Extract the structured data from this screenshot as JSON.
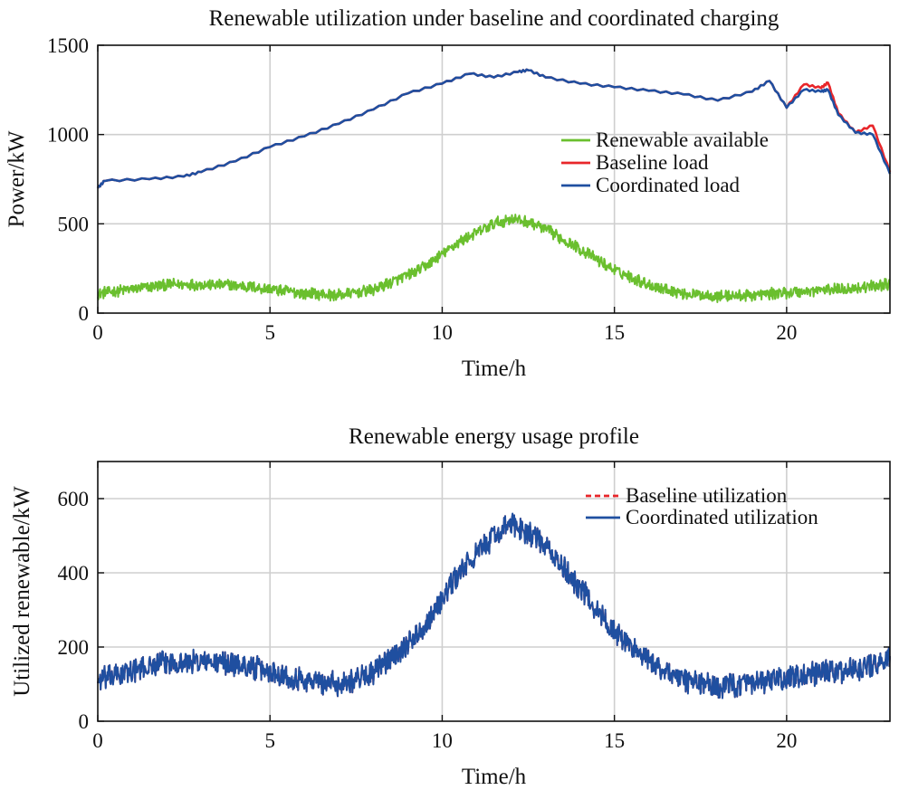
{
  "chart_data": [
    {
      "type": "line",
      "title": "Renewable utilization under baseline and coordinated charging",
      "xlabel": "Time/h",
      "ylabel": "Power/kW",
      "xlim": [
        0,
        23
      ],
      "ylim": [
        0,
        1500
      ],
      "xticks": [
        0,
        5,
        10,
        15,
        20
      ],
      "yticks": [
        0,
        500,
        1000,
        1500
      ],
      "grid": true,
      "legend_position": "right",
      "colors": {
        "renewable": "#6abf2e",
        "baseline": "#e8262a",
        "coordinated": "#1f4fa0"
      },
      "legend": [
        "Renewable available",
        "Baseline load",
        "Coordinated load"
      ],
      "series": [
        {
          "name": "Renewable available",
          "style": "solid-noisy",
          "noise_amplitude": 35,
          "x": [
            0,
            1,
            2,
            3,
            4,
            5,
            6,
            7,
            8,
            9,
            9.5,
            10,
            10.5,
            11,
            11.5,
            12,
            12.5,
            13,
            14,
            15,
            16,
            17,
            18,
            19,
            20,
            21,
            22,
            23
          ],
          "values": [
            110,
            135,
            160,
            160,
            155,
            135,
            110,
            100,
            130,
            210,
            260,
            330,
            400,
            450,
            500,
            530,
            510,
            470,
            360,
            240,
            160,
            110,
            95,
            100,
            115,
            130,
            140,
            165
          ]
        },
        {
          "name": "Baseline load",
          "style": "solid",
          "x": [
            0,
            0.2,
            1.5,
            2.5,
            3,
            4,
            5,
            6,
            7,
            8,
            9,
            10,
            10.8,
            11.5,
            12.2,
            12.5,
            13,
            14,
            15,
            16,
            17,
            18,
            19,
            19.5,
            20,
            20.5,
            21,
            21.2,
            21.5,
            22,
            22.5,
            23
          ],
          "values": [
            700,
            740,
            750,
            765,
            790,
            850,
            930,
            990,
            1060,
            1140,
            1230,
            1285,
            1340,
            1320,
            1350,
            1360,
            1320,
            1285,
            1265,
            1245,
            1225,
            1190,
            1240,
            1300,
            1150,
            1280,
            1260,
            1290,
            1120,
            1010,
            1050,
            790
          ]
        },
        {
          "name": "Coordinated load",
          "style": "solid",
          "x": [
            0,
            0.2,
            1.5,
            2.5,
            3,
            4,
            5,
            6,
            7,
            8,
            9,
            10,
            10.8,
            11.5,
            12.2,
            12.5,
            13,
            14,
            15,
            16,
            17,
            18,
            19,
            19.5,
            20,
            20.5,
            21,
            21.2,
            21.5,
            22,
            22.5,
            23
          ],
          "values": [
            700,
            740,
            750,
            765,
            790,
            850,
            930,
            990,
            1060,
            1140,
            1230,
            1285,
            1340,
            1320,
            1350,
            1360,
            1320,
            1285,
            1265,
            1245,
            1225,
            1190,
            1240,
            1300,
            1150,
            1250,
            1240,
            1250,
            1110,
            1010,
            1000,
            780
          ]
        }
      ]
    },
    {
      "type": "line",
      "title": "Renewable energy usage profile",
      "xlabel": "Time/h",
      "ylabel": "Utilized renewable/kW",
      "xlim": [
        0,
        23
      ],
      "ylim": [
        0,
        700
      ],
      "xticks": [
        0,
        5,
        10,
        15,
        20
      ],
      "yticks": [
        0,
        200,
        400,
        600
      ],
      "grid": true,
      "legend_position": "top-right",
      "colors": {
        "baseline": "#e8262a",
        "coordinated": "#1f4fa0"
      },
      "legend": [
        "Baseline utilization",
        "Coordinated utilization"
      ],
      "series": [
        {
          "name": "Baseline utilization",
          "style": "dashed",
          "noise_amplitude": 35,
          "x": [
            0,
            1,
            2,
            3,
            4,
            5,
            6,
            7,
            8,
            9,
            9.5,
            10,
            10.5,
            11,
            11.5,
            12,
            12.5,
            13,
            14,
            15,
            16,
            17,
            18,
            19,
            20,
            21,
            22,
            23
          ],
          "values": [
            110,
            135,
            160,
            160,
            155,
            135,
            110,
            100,
            130,
            210,
            260,
            330,
            400,
            450,
            500,
            530,
            510,
            470,
            360,
            240,
            160,
            110,
            95,
            100,
            115,
            130,
            140,
            165
          ]
        },
        {
          "name": "Coordinated utilization",
          "style": "solid",
          "noise_amplitude": 35,
          "x": [
            0,
            1,
            2,
            3,
            4,
            5,
            6,
            7,
            8,
            9,
            9.5,
            10,
            10.5,
            11,
            11.5,
            12,
            12.5,
            13,
            14,
            15,
            16,
            17,
            18,
            19,
            20,
            21,
            22,
            23
          ],
          "values": [
            110,
            135,
            160,
            160,
            155,
            135,
            110,
            100,
            130,
            210,
            260,
            330,
            400,
            450,
            500,
            530,
            510,
            470,
            360,
            240,
            160,
            110,
            95,
            100,
            115,
            130,
            140,
            165
          ]
        }
      ]
    }
  ]
}
